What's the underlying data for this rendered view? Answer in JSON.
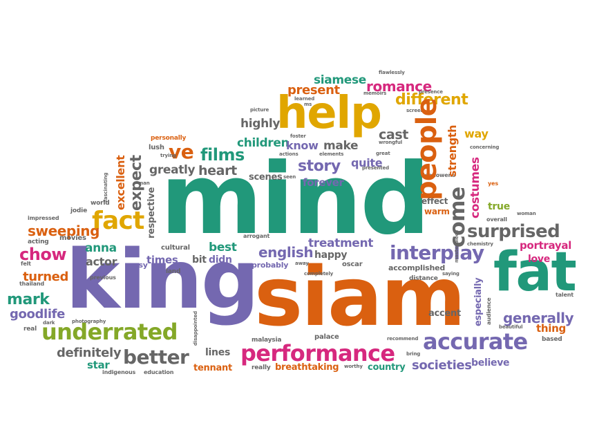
{
  "colors": {
    "green": "#21987a",
    "purple": "#7468b0",
    "orange": "#da6010",
    "pink": "#d6287e",
    "gray": "#666666",
    "yellow": "#e0a600",
    "olive": "#84a828",
    "background": "#ffffff"
  },
  "words": {
    "mind": "mind",
    "king": "king",
    "siam": "siam",
    "fat": "fat",
    "help": "help",
    "accurate": "accurate",
    "performance": "performance",
    "underrated": "underrated",
    "people": "people",
    "interplay": "interplay",
    "better": "better",
    "fact": "fact",
    "come": "come",
    "surprised": "surprised",
    "generally": "generally",
    "films": "films",
    "ve": "ve",
    "story": "story",
    "chow": "chow",
    "mark": "mark",
    "sweeping": "sweeping",
    "turned": "turned",
    "goodlife": "goodlife",
    "costumes": "costumes",
    "strength": "strength",
    "expect": "expect",
    "excellent": "excellent",
    "different": "different",
    "romance": "romance",
    "siamese": "siamese",
    "present": "present",
    "heart": "heart",
    "greatly": "greatly",
    "children": "children",
    "know": "know",
    "make": "make",
    "highly": "highly",
    "quite": "quite",
    "forever": "forever",
    "scenes": "scenes",
    "treatment": "treatment",
    "english": "english",
    "happy": "happy",
    "best": "best",
    "bit": "bit",
    "didn": "didn",
    "times": "times",
    "actor": "actor",
    "anna": "anna",
    "respective": "respective",
    "lines": "lines",
    "star": "star",
    "tennant": "tennant",
    "definitely": "definitely",
    "societies": "societies",
    "believe": "believe",
    "country": "country",
    "breathtaking": "breathtaking",
    "especially": "especially",
    "accent": "accent",
    "thing": "thing",
    "portrayal": "portrayal",
    "love": "love",
    "true": "true",
    "warm": "warm",
    "effect": "effect",
    "accomplished": "accomplished",
    "way": "way",
    "cast": "cast",
    "lush": "lush",
    "personally": "personally",
    "world": "world",
    "jodie": "jodie",
    "movies": "movies",
    "acting": "acting",
    "impressed": "impressed",
    "cultural": "cultural",
    "arrogant": "arrogant",
    "easy": "easy",
    "land": "land",
    "probably": "probably",
    "oscar": "oscar",
    "palace": "palace",
    "malaysia": "malaysia",
    "really": "really",
    "indigenous": "indigenous",
    "education": "education",
    "photography": "photography",
    "real": "real",
    "felt": "felt",
    "dark": "dark",
    "thailand": "thailand",
    "previous": "previous",
    "disappointed": "disappointed",
    "seen": "seen",
    "distance": "distance",
    "saying": "saying",
    "completely": "completely",
    "away": "away",
    "worthy": "worthy",
    "bring": "bring",
    "recommend": "recommend",
    "audience": "audience",
    "based": "based",
    "beautiful": "beautiful",
    "talent": "talent",
    "chemistry": "chemistry",
    "masterpiece": "masterpiece",
    "woman": "woman",
    "overall": "overall",
    "yes": "yes",
    "leonowens": "leonowens",
    "concerning": "concerning",
    "elements": "elements",
    "actions": "actions",
    "trying": "trying",
    "man": "man",
    "fascinating": "fascinating",
    "picture": "picture",
    "foster": "foster",
    "memoirs": "memoirs",
    "flawlessly": "flawlessly",
    "presence": "presence",
    "learned": "learned",
    "screen": "screen",
    "wrongful": "wrongful",
    "great": "great",
    "presented": "presented",
    "ms": "ms"
  }
}
